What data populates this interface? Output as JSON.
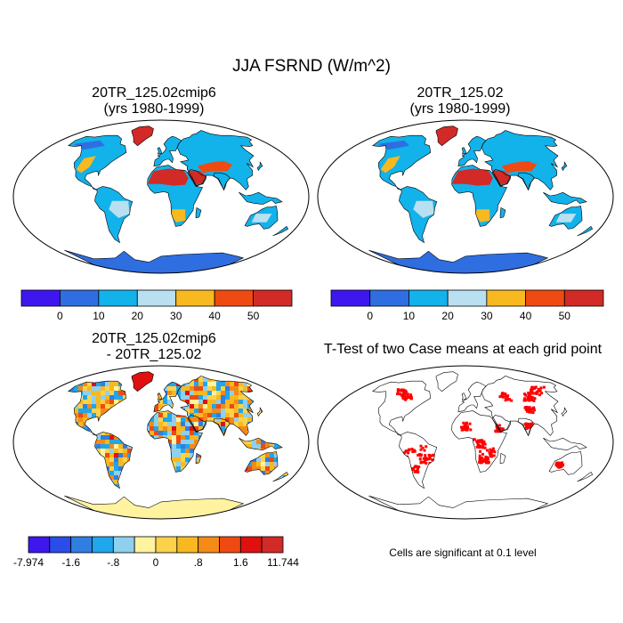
{
  "figure": {
    "title": "JJA FSRND (W/m^2)",
    "significance_note": "Cells are significant at 0.1 level"
  },
  "panels": [
    {
      "id": "p1",
      "title_line1": "20TR_125.02cmip6",
      "title_line2": "(yrs 1980-1999)",
      "kind": "field"
    },
    {
      "id": "p2",
      "title_line1": "20TR_125.02",
      "title_line2": "(yrs 1980-1999)",
      "kind": "field"
    },
    {
      "id": "p3",
      "title_line1": "20TR_125.02cmip6",
      "title_line2": "- 20TR_125.02",
      "kind": "difference"
    },
    {
      "id": "p4",
      "title_line1": "T-Test of two Case means at each grid point",
      "title_line2": "",
      "kind": "significance"
    }
  ],
  "chart_data": [
    {
      "type": "heatmap",
      "title": "20TR_125.02cmip6",
      "subtitle": "(yrs 1980-1999)",
      "colorbar": {
        "levels": [
          0,
          10,
          20,
          30,
          40,
          50
        ],
        "tick_labels": [
          "0",
          "10",
          "20",
          "30",
          "40",
          "50"
        ],
        "colors": [
          "#3e17ee",
          "#2f6ee0",
          "#12b2ea",
          "#b8e0f0",
          "#f8b81f",
          "#ee4a12",
          "#d22a26"
        ]
      }
    },
    {
      "type": "heatmap",
      "title": "20TR_125.02",
      "subtitle": "(yrs 1980-1999)",
      "colorbar": {
        "levels": [
          0,
          10,
          20,
          30,
          40,
          50
        ],
        "tick_labels": [
          "0",
          "10",
          "20",
          "30",
          "40",
          "50"
        ],
        "colors": [
          "#3e17ee",
          "#2f6ee0",
          "#12b2ea",
          "#b8e0f0",
          "#f8b81f",
          "#ee4a12",
          "#d22a26"
        ]
      }
    },
    {
      "type": "heatmap",
      "title": "20TR_125.02cmip6",
      "subtitle": "- 20TR_125.02",
      "colorbar": {
        "tick_labels": [
          "-7.974",
          "-1.6",
          "-.8",
          "0",
          ".8",
          "1.6",
          "11.744"
        ],
        "colors": [
          "#3e17ee",
          "#2a4ce8",
          "#2f7ee2",
          "#1fa6ec",
          "#8ed0ee",
          "#fff3a0",
          "#fbd24a",
          "#f8b81f",
          "#f48a18",
          "#ee4a12",
          "#e01010",
          "#d22a26"
        ]
      }
    },
    {
      "type": "heatmap",
      "title": "T-Test of two Case means at each grid point",
      "significance_color": "#ff0000"
    }
  ]
}
